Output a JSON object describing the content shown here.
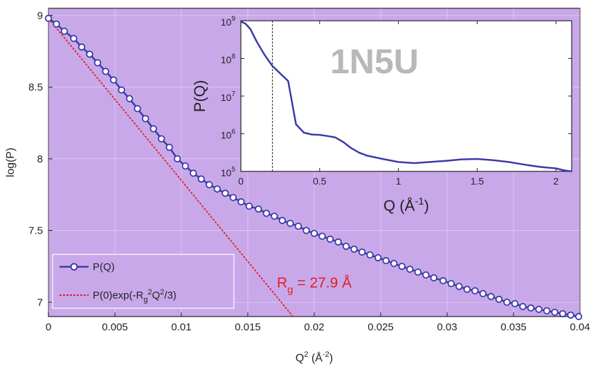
{
  "chart_data": [
    {
      "type": "line",
      "xlabel": "Q",
      "xlabel_sup": "2",
      "xlabel_unit": "(Å",
      "xlabel_unit_sup": "-2",
      "xlabel_close": ")",
      "ylabel": "log(P)",
      "xlim": [
        0,
        0.04
      ],
      "ylim": [
        6.9,
        9.05
      ],
      "xticks": [
        "0",
        "0.005",
        "0.01",
        "0.015",
        "0.02",
        "0.025",
        "0.03",
        "0.035",
        "0.04"
      ],
      "xtick_values": [
        0,
        0.005,
        0.01,
        0.015,
        0.02,
        0.025,
        0.03,
        0.035,
        0.04
      ],
      "yticks": [
        "7",
        "7.5",
        "8",
        "8.5",
        "9"
      ],
      "ytick_values": [
        7,
        7.5,
        8,
        8.5,
        9
      ],
      "grid": true,
      "legend_position": "bottom-left",
      "series": [
        {
          "name": "P(Q)",
          "color": "#3a3aa8",
          "marker": "circle-white",
          "x": [
            0,
            0.0006,
            0.0012,
            0.0019,
            0.0025,
            0.0031,
            0.0037,
            0.0043,
            0.0049,
            0.0055,
            0.0061,
            0.0067,
            0.0073,
            0.0079,
            0.0085,
            0.0091,
            0.0097,
            0.0103,
            0.0109,
            0.0115,
            0.0121,
            0.0127,
            0.0133,
            0.0139,
            0.0145,
            0.0151,
            0.0158,
            0.0164,
            0.017,
            0.0176,
            0.0182,
            0.0188,
            0.0194,
            0.02,
            0.0206,
            0.0212,
            0.0218,
            0.0224,
            0.023,
            0.0236,
            0.0242,
            0.0248,
            0.0254,
            0.026,
            0.0266,
            0.0272,
            0.0278,
            0.0284,
            0.029,
            0.0297,
            0.0303,
            0.0309,
            0.0315,
            0.0321,
            0.0327,
            0.0333,
            0.0339,
            0.0345,
            0.0351,
            0.0357,
            0.0363,
            0.0369,
            0.0375,
            0.0381,
            0.0387,
            0.0393,
            0.0399
          ],
          "y": [
            8.98,
            8.94,
            8.89,
            8.84,
            8.78,
            8.73,
            8.67,
            8.61,
            8.55,
            8.48,
            8.42,
            8.35,
            8.28,
            8.21,
            8.14,
            8.08,
            8.0,
            7.95,
            7.9,
            7.86,
            7.82,
            7.79,
            7.76,
            7.73,
            7.7,
            7.67,
            7.65,
            7.62,
            7.6,
            7.57,
            7.55,
            7.53,
            7.5,
            7.48,
            7.46,
            7.44,
            7.42,
            7.39,
            7.37,
            7.35,
            7.33,
            7.31,
            7.29,
            7.27,
            7.25,
            7.23,
            7.21,
            7.19,
            7.17,
            7.15,
            7.13,
            7.11,
            7.09,
            7.08,
            7.06,
            7.04,
            7.02,
            7.0,
            6.99,
            6.97,
            6.96,
            6.95,
            6.94,
            6.93,
            6.92,
            6.91,
            6.9
          ]
        },
        {
          "name": "P(0)exp(-R",
          "name_sub": "g",
          "name_sup": "2",
          "name_mid": "Q",
          "name_sup2": "2",
          "name_end": "/3)",
          "color": "#e02020",
          "style": "dashed",
          "x": [
            0,
            0.0184
          ],
          "y": [
            8.98,
            6.9
          ]
        }
      ],
      "annotation": {
        "text_r": "R",
        "text_sub": "g",
        "text_rest": " = 27.9 Å",
        "color": "#e02020"
      }
    },
    {
      "type": "line",
      "inset": true,
      "xlabel": "Q (Å",
      "xlabel_sup": "-1",
      "xlabel_close": ")",
      "ylabel": "P(Q)",
      "xlim": [
        0,
        2.1
      ],
      "ylim_log10": [
        5,
        9
      ],
      "yscale": "log",
      "xticks": [
        "0",
        "0.5",
        "1",
        "1.5",
        "2"
      ],
      "xtick_values": [
        0,
        0.5,
        1,
        1.5,
        2
      ],
      "yticks_base": "10",
      "yticks_exp": [
        "5",
        "6",
        "7",
        "8",
        "9"
      ],
      "ytick_values_log10": [
        5,
        6,
        7,
        8,
        9
      ],
      "watermark": "1N5U",
      "vline_x": 0.2,
      "series": [
        {
          "name": "",
          "color": "#3a3aa8",
          "x": [
            0,
            0.03,
            0.06,
            0.1,
            0.15,
            0.2,
            0.25,
            0.3,
            0.35,
            0.4,
            0.45,
            0.5,
            0.55,
            0.6,
            0.65,
            0.7,
            0.75,
            0.8,
            0.9,
            1.0,
            1.1,
            1.2,
            1.3,
            1.4,
            1.5,
            1.6,
            1.7,
            1.8,
            1.9,
            2.0,
            2.05,
            2.1
          ],
          "y_log10": [
            8.98,
            8.92,
            8.78,
            8.45,
            8.1,
            7.8,
            7.6,
            7.4,
            6.25,
            6.03,
            5.98,
            5.97,
            5.94,
            5.9,
            5.78,
            5.62,
            5.5,
            5.42,
            5.33,
            5.25,
            5.22,
            5.25,
            5.28,
            5.32,
            5.33,
            5.3,
            5.25,
            5.18,
            5.12,
            5.08,
            5.03,
            5.0
          ]
        }
      ]
    }
  ]
}
